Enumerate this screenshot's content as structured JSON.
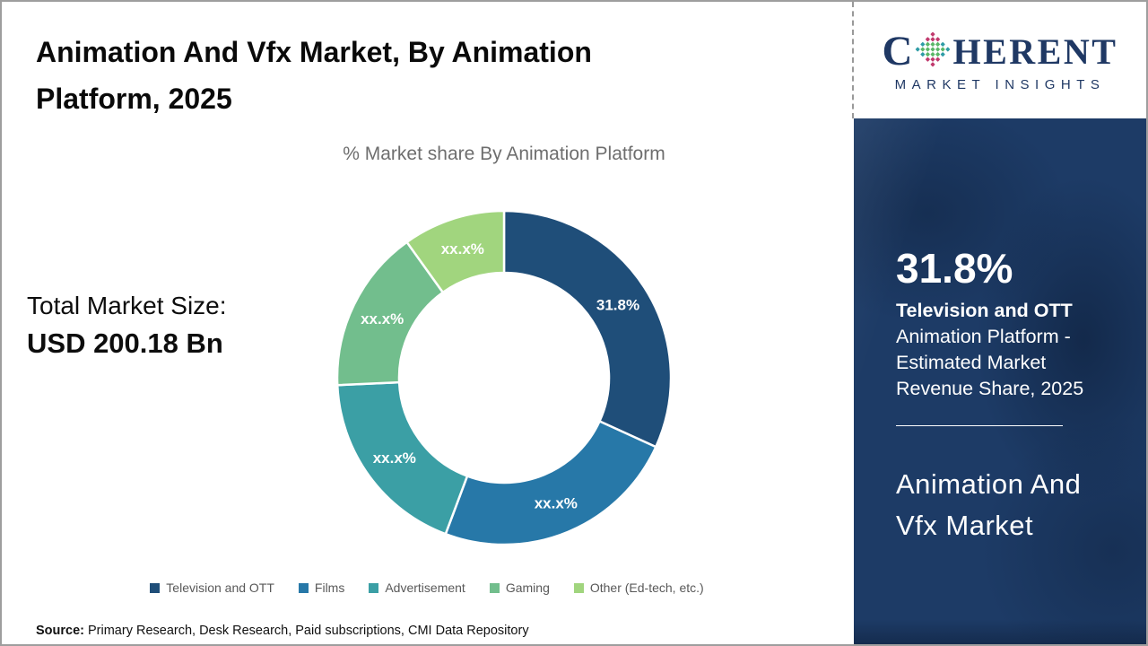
{
  "header": {
    "title": "Animation And Vfx Market, By Animation Platform, 2025"
  },
  "logo": {
    "brand_first_letter": "C",
    "brand_rest": "HERENT",
    "tagline": "MARKET INSIGHTS",
    "brand_color": "#1f3864",
    "globe_dot_colors": {
      "edge": "#2e9ca6",
      "center": "#5bb768",
      "tips": "#c13a6e"
    }
  },
  "chart_data": {
    "type": "pie",
    "subtype": "donut",
    "title": "% Market share By Animation Platform",
    "start_angle_deg": 0,
    "donut_hole_ratio": 0.63,
    "legend_position": "bottom",
    "segments": [
      {
        "label": "Television and OTT",
        "value": 31.8,
        "display": "31.8%",
        "color": "#1f4e79"
      },
      {
        "label": "Films",
        "value": 23.9,
        "display": "xx.x%",
        "color": "#2778a8"
      },
      {
        "label": "Advertisement",
        "value": 18.6,
        "display": "xx.x%",
        "color": "#3b9fa5"
      },
      {
        "label": "Gaming",
        "value": 15.8,
        "display": "xx.x%",
        "color": "#72be8d"
      },
      {
        "label": "Other (Ed-tech, etc.)",
        "value": 9.9,
        "display": "xx.x%",
        "color": "#a1d57e"
      }
    ]
  },
  "left_panel": {
    "total_label": "Total Market Size:",
    "total_value": "USD 200.18 Bn"
  },
  "sidebar": {
    "stat_value": "31.8%",
    "stat_label_bold": "Television and OTT",
    "stat_desc": "Animation Platform - Estimated Market Revenue Share, 2025",
    "market_name": "Animation And Vfx Market",
    "bg_color": "#1d3b66"
  },
  "footer": {
    "source_label": "Source:",
    "source_text": "Primary Research, Desk Research, Paid subscriptions, CMI Data Repository"
  }
}
